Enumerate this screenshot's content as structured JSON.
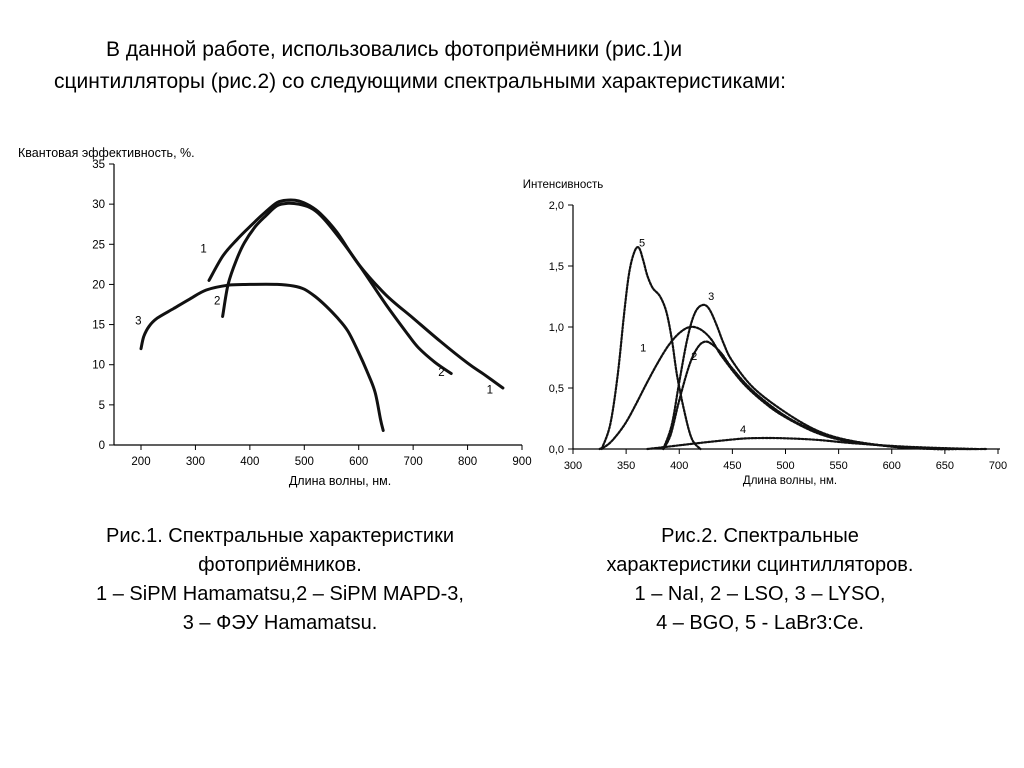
{
  "intro": {
    "line1": "В данной работе, использовались фотоприёмники (рис.1)и",
    "line2": "сцинтилляторы (рис.2) со следующими спектральными характеристиками:"
  },
  "chart_data": [
    {
      "type": "line",
      "ylabel": "Квантовая эффективность, %.",
      "xlabel": "Длина волны, нм.",
      "xlim": [
        150,
        900
      ],
      "ylim": [
        0,
        35
      ],
      "x_ticks": [
        "200",
        "300",
        "400",
        "500",
        "600",
        "700",
        "800",
        "900"
      ],
      "y_ticks": [
        "0",
        "5",
        "10",
        "15",
        "20",
        "25",
        "30",
        "35"
      ],
      "grid": false,
      "series": [
        {
          "name": "1",
          "x": [
            325,
            350,
            375,
            400,
            425,
            450,
            470,
            490,
            510,
            530,
            560,
            600,
            650,
            700,
            750,
            800,
            830,
            865
          ],
          "y": [
            20.5,
            23.5,
            25.5,
            27.2,
            28.8,
            30.2,
            30.5,
            30.4,
            29.8,
            28.8,
            26.5,
            22.5,
            18.7,
            15.8,
            12.9,
            10.2,
            8.8,
            7.1
          ]
        },
        {
          "name": "2",
          "x": [
            350,
            360,
            375,
            390,
            410,
            430,
            450,
            470,
            490,
            510,
            530,
            560,
            600,
            650,
            690,
            710,
            740,
            770
          ],
          "y": [
            16,
            20,
            23,
            25.2,
            27.2,
            28.6,
            29.8,
            30.1,
            30,
            29.6,
            28.6,
            26.2,
            22.5,
            17.5,
            13.8,
            12.1,
            10.3,
            8.9
          ]
        },
        {
          "name": "3",
          "x": [
            200,
            205,
            215,
            230,
            260,
            290,
            320,
            360,
            400,
            450,
            480,
            500,
            520,
            540,
            560,
            580,
            600,
            615,
            630,
            640,
            645
          ],
          "y": [
            12,
            13.5,
            14.8,
            15.8,
            17,
            18.2,
            19.3,
            19.9,
            20,
            20,
            19.8,
            19.4,
            18.5,
            17.3,
            15.9,
            14.2,
            11.5,
            9.2,
            6.6,
            3.2,
            1.8
          ]
        }
      ],
      "series_labels": [
        {
          "text": "1",
          "x": 315,
          "y": 24
        },
        {
          "text": "2",
          "x": 340,
          "y": 17.5
        },
        {
          "text": "3",
          "x": 195,
          "y": 15
        },
        {
          "text": "2",
          "x": 752,
          "y": 8.6
        },
        {
          "text": "1",
          "x": 841,
          "y": 6.4
        }
      ]
    },
    {
      "type": "line",
      "ylabel": "Интенсивность",
      "xlabel": "Длина волны, нм.",
      "xlim": [
        300,
        700
      ],
      "ylim": [
        0,
        2
      ],
      "x_ticks": [
        "300",
        "350",
        "400",
        "450",
        "500",
        "550",
        "600",
        "650",
        "700"
      ],
      "y_ticks": [
        "0,0",
        "0,5",
        "1,0",
        "1,5",
        "2,0"
      ],
      "grid": false,
      "series": [
        {
          "name": "1",
          "x": [
            325,
            332,
            340,
            350,
            360,
            370,
            380,
            390,
            400,
            410,
            420,
            430,
            440,
            460,
            480,
            500,
            530,
            560,
            590,
            620,
            660,
            690
          ],
          "y": [
            0,
            0.03,
            0.1,
            0.22,
            0.38,
            0.55,
            0.71,
            0.85,
            0.95,
            1.0,
            0.98,
            0.9,
            0.76,
            0.54,
            0.38,
            0.26,
            0.13,
            0.06,
            0.03,
            0.01,
            0.0,
            0.0
          ]
        },
        {
          "name": "2",
          "x": [
            385,
            392,
            400,
            410,
            418,
            425,
            432,
            440,
            450,
            470,
            500,
            530,
            560,
            600,
            640,
            660
          ],
          "y": [
            0,
            0.12,
            0.4,
            0.7,
            0.84,
            0.88,
            0.85,
            0.78,
            0.66,
            0.47,
            0.27,
            0.14,
            0.07,
            0.02,
            0.0,
            0.0
          ]
        },
        {
          "name": "3",
          "x": [
            385,
            393,
            400,
            408,
            415,
            422,
            428,
            435,
            442,
            450,
            470,
            500,
            530,
            560,
            600,
            640,
            660
          ],
          "y": [
            0,
            0.2,
            0.55,
            0.92,
            1.12,
            1.18,
            1.15,
            1.02,
            0.86,
            0.72,
            0.5,
            0.3,
            0.15,
            0.07,
            0.02,
            0.0,
            0.0
          ]
        },
        {
          "name": "4",
          "x": [
            370,
            400,
            430,
            460,
            480,
            500,
            530,
            560,
            600,
            640,
            680
          ],
          "y": [
            0,
            0.03,
            0.06,
            0.085,
            0.09,
            0.088,
            0.075,
            0.05,
            0.025,
            0.01,
            0.0
          ]
        },
        {
          "name": "5",
          "x": [
            327,
            335,
            342,
            348,
            353,
            358,
            362,
            366,
            370,
            375,
            382,
            388,
            393,
            398,
            405,
            412,
            420
          ],
          "y": [
            0,
            0.2,
            0.6,
            1.1,
            1.45,
            1.62,
            1.65,
            1.55,
            1.42,
            1.32,
            1.25,
            1.12,
            0.9,
            0.6,
            0.3,
            0.08,
            0.0
          ]
        }
      ],
      "series_labels": [
        {
          "text": "5",
          "x": 365,
          "y": 1.66
        },
        {
          "text": "3",
          "x": 430,
          "y": 1.22
        },
        {
          "text": "1",
          "x": 366,
          "y": 0.8
        },
        {
          "text": "2",
          "x": 414,
          "y": 0.73
        },
        {
          "text": "4",
          "x": 460,
          "y": 0.13
        }
      ]
    }
  ],
  "captions": {
    "fig1": [
      "Рис.1. Спектральные характеристики",
      "фотоприёмников.",
      "1 – SiPM Hamamatsu,2 – SiPM MAPD-3,",
      "3 – ФЭУ Hamamatsu."
    ],
    "fig2": [
      "Рис.2. Спектральные",
      "характеристики сцинтилляторов.",
      "1 – NaI, 2 – LSO, 3 – LYSO,",
      "4 – BGO, 5 - LaBr3:Ce."
    ]
  }
}
